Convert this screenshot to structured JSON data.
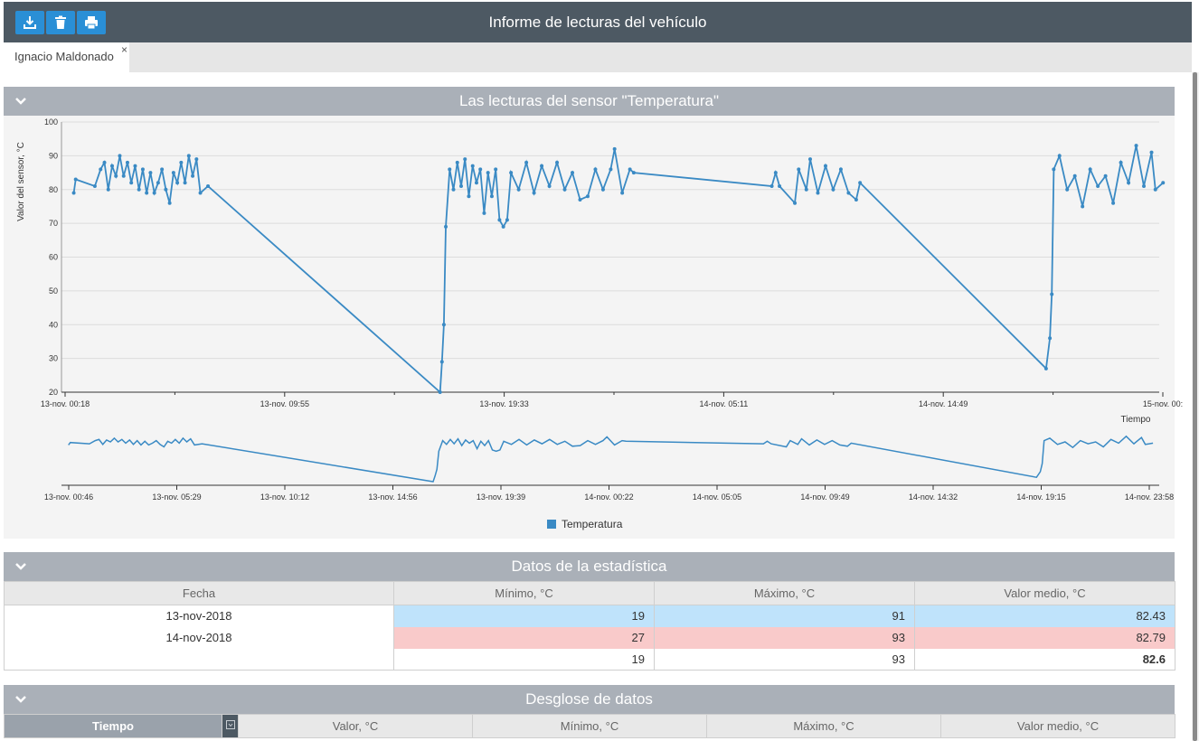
{
  "window": {
    "title": "Informe de lecturas del vehículo"
  },
  "toolbar": {
    "icons": [
      "download-icon",
      "trash-icon",
      "print-icon"
    ]
  },
  "tabs": [
    {
      "label": "Ignacio Maldonado",
      "close": "×"
    }
  ],
  "chart_section": {
    "title": "Las lecturas del sensor \"Temperatura\""
  },
  "chart_data": {
    "type": "line",
    "ylabel": "Valor del sensor, °C",
    "xlabel": "Tiempo",
    "ylim": [
      20,
      100
    ],
    "yticks": [
      20,
      30,
      40,
      50,
      60,
      70,
      80,
      90,
      100
    ],
    "x_tick_labels": [
      "13-nov. 00:18",
      "13-nov. 09:55",
      "13-nov. 19:33",
      "14-nov. 05:11",
      "14-nov. 14:49",
      "15-nov. 00:"
    ],
    "navigator_tick_labels": [
      "13-nov. 00:46",
      "13-nov. 05:29",
      "13-nov. 10:12",
      "13-nov. 14:56",
      "13-nov. 19:39",
      "14-nov. 00:22",
      "14-nov. 05:05",
      "14-nov. 09:49",
      "14-nov. 14:32",
      "14-nov. 19:15",
      "14-nov. 23:58"
    ],
    "legend": "Temperatura",
    "color": "#3a8ac4",
    "grid": true,
    "legend_position": "bottom-center",
    "series": [
      {
        "name": "Temperatura",
        "points": [
          [
            "13-nov 00:50",
            79
          ],
          [
            "13-nov 00:55",
            83
          ],
          [
            "13-nov 01:45",
            81
          ],
          [
            "13-nov 02:00",
            86
          ],
          [
            "13-nov 02:10",
            88
          ],
          [
            "13-nov 02:20",
            80
          ],
          [
            "13-nov 02:30",
            87
          ],
          [
            "13-nov 02:40",
            84
          ],
          [
            "13-nov 02:50",
            90
          ],
          [
            "13-nov 03:00",
            84
          ],
          [
            "13-nov 03:10",
            88
          ],
          [
            "13-nov 03:20",
            82
          ],
          [
            "13-nov 03:30",
            87
          ],
          [
            "13-nov 03:40",
            80
          ],
          [
            "13-nov 03:50",
            86
          ],
          [
            "13-nov 04:00",
            79
          ],
          [
            "13-nov 04:10",
            85
          ],
          [
            "13-nov 04:20",
            79
          ],
          [
            "13-nov 04:30",
            82
          ],
          [
            "13-nov 04:40",
            86
          ],
          [
            "13-nov 04:50",
            80
          ],
          [
            "13-nov 05:00",
            76
          ],
          [
            "13-nov 05:10",
            85
          ],
          [
            "13-nov 05:20",
            82
          ],
          [
            "13-nov 05:30",
            88
          ],
          [
            "13-nov 05:40",
            82
          ],
          [
            "13-nov 05:50",
            90
          ],
          [
            "13-nov 06:00",
            84
          ],
          [
            "13-nov 06:10",
            89
          ],
          [
            "13-nov 06:20",
            79
          ],
          [
            "13-nov 06:40",
            81
          ],
          [
            "13-nov 16:45",
            20
          ],
          [
            "13-nov 16:50",
            29
          ],
          [
            "13-nov 16:55",
            40
          ],
          [
            "13-nov 17:00",
            69
          ],
          [
            "13-nov 17:10",
            86
          ],
          [
            "13-nov 17:20",
            80
          ],
          [
            "13-nov 17:30",
            88
          ],
          [
            "13-nov 17:40",
            81
          ],
          [
            "13-nov 17:50",
            89
          ],
          [
            "13-nov 18:00",
            78
          ],
          [
            "13-nov 18:10",
            87
          ],
          [
            "13-nov 18:20",
            82
          ],
          [
            "13-nov 18:30",
            86
          ],
          [
            "13-nov 18:40",
            73
          ],
          [
            "13-nov 18:50",
            85
          ],
          [
            "13-nov 19:00",
            78
          ],
          [
            "13-nov 19:10",
            86
          ],
          [
            "13-nov 19:20",
            71
          ],
          [
            "13-nov 19:30",
            69
          ],
          [
            "13-nov 19:40",
            71
          ],
          [
            "13-nov 19:50",
            85
          ],
          [
            "13-nov 20:10",
            80
          ],
          [
            "13-nov 20:30",
            88
          ],
          [
            "13-nov 20:50",
            79
          ],
          [
            "13-nov 21:10",
            87
          ],
          [
            "13-nov 21:30",
            81
          ],
          [
            "13-nov 21:50",
            88
          ],
          [
            "13-nov 22:10",
            80
          ],
          [
            "13-nov 22:30",
            85
          ],
          [
            "13-nov 22:50",
            77
          ],
          [
            "13-nov 23:10",
            78
          ],
          [
            "13-nov 23:30",
            86
          ],
          [
            "13-nov 23:50",
            80
          ],
          [
            "14-nov 00:10",
            86
          ],
          [
            "14-nov 00:20",
            92
          ],
          [
            "14-nov 00:40",
            79
          ],
          [
            "14-nov 01:00",
            86
          ],
          [
            "14-nov 01:10",
            85
          ],
          [
            "14-nov 07:10",
            81
          ],
          [
            "14-nov 07:20",
            85
          ],
          [
            "14-nov 07:30",
            81
          ],
          [
            "14-nov 08:10",
            76
          ],
          [
            "14-nov 08:20",
            86
          ],
          [
            "14-nov 08:40",
            80
          ],
          [
            "14-nov 08:50",
            89
          ],
          [
            "14-nov 09:10",
            79
          ],
          [
            "14-nov 09:30",
            87
          ],
          [
            "14-nov 09:50",
            80
          ],
          [
            "14-nov 10:10",
            86
          ],
          [
            "14-nov 10:30",
            79
          ],
          [
            "14-nov 10:50",
            77
          ],
          [
            "14-nov 11:00",
            82
          ],
          [
            "14-nov 19:05",
            27
          ],
          [
            "14-nov 19:15",
            36
          ],
          [
            "14-nov 19:20",
            49
          ],
          [
            "14-nov 19:25",
            86
          ],
          [
            "14-nov 19:40",
            90
          ],
          [
            "14-nov 20:00",
            80
          ],
          [
            "14-nov 20:20",
            84
          ],
          [
            "14-nov 20:40",
            75
          ],
          [
            "14-nov 21:00",
            86
          ],
          [
            "14-nov 21:20",
            81
          ],
          [
            "14-nov 21:40",
            84
          ],
          [
            "14-nov 22:00",
            76
          ],
          [
            "14-nov 22:20",
            88
          ],
          [
            "14-nov 22:40",
            82
          ],
          [
            "14-nov 23:00",
            93
          ],
          [
            "14-nov 23:20",
            81
          ],
          [
            "14-nov 23:40",
            91
          ],
          [
            "14-nov 23:50",
            80
          ],
          [
            "15-nov 00:10",
            82
          ]
        ]
      }
    ]
  },
  "stats_section": {
    "title": "Datos de la estadística",
    "columns": [
      "Fecha",
      "Mínimo, °C",
      "Máximo, °C",
      "Valor medio, °C"
    ],
    "rows": [
      {
        "date": "13-nov-2018",
        "min": "19",
        "max": "91",
        "avg": "82.43",
        "color": "#bfe3fb"
      },
      {
        "date": "14-nov-2018",
        "min": "27",
        "max": "93",
        "avg": "82.79",
        "color": "#f9caca"
      }
    ],
    "total": {
      "date": "",
      "min": "19",
      "max": "93",
      "avg": "82.6"
    }
  },
  "breakdown_section": {
    "title": "Desglose de datos",
    "columns": [
      "Tiempo",
      "Valor, °C",
      "Mínimo, °C",
      "Máximo, °C",
      "Valor medio, °C"
    ]
  }
}
